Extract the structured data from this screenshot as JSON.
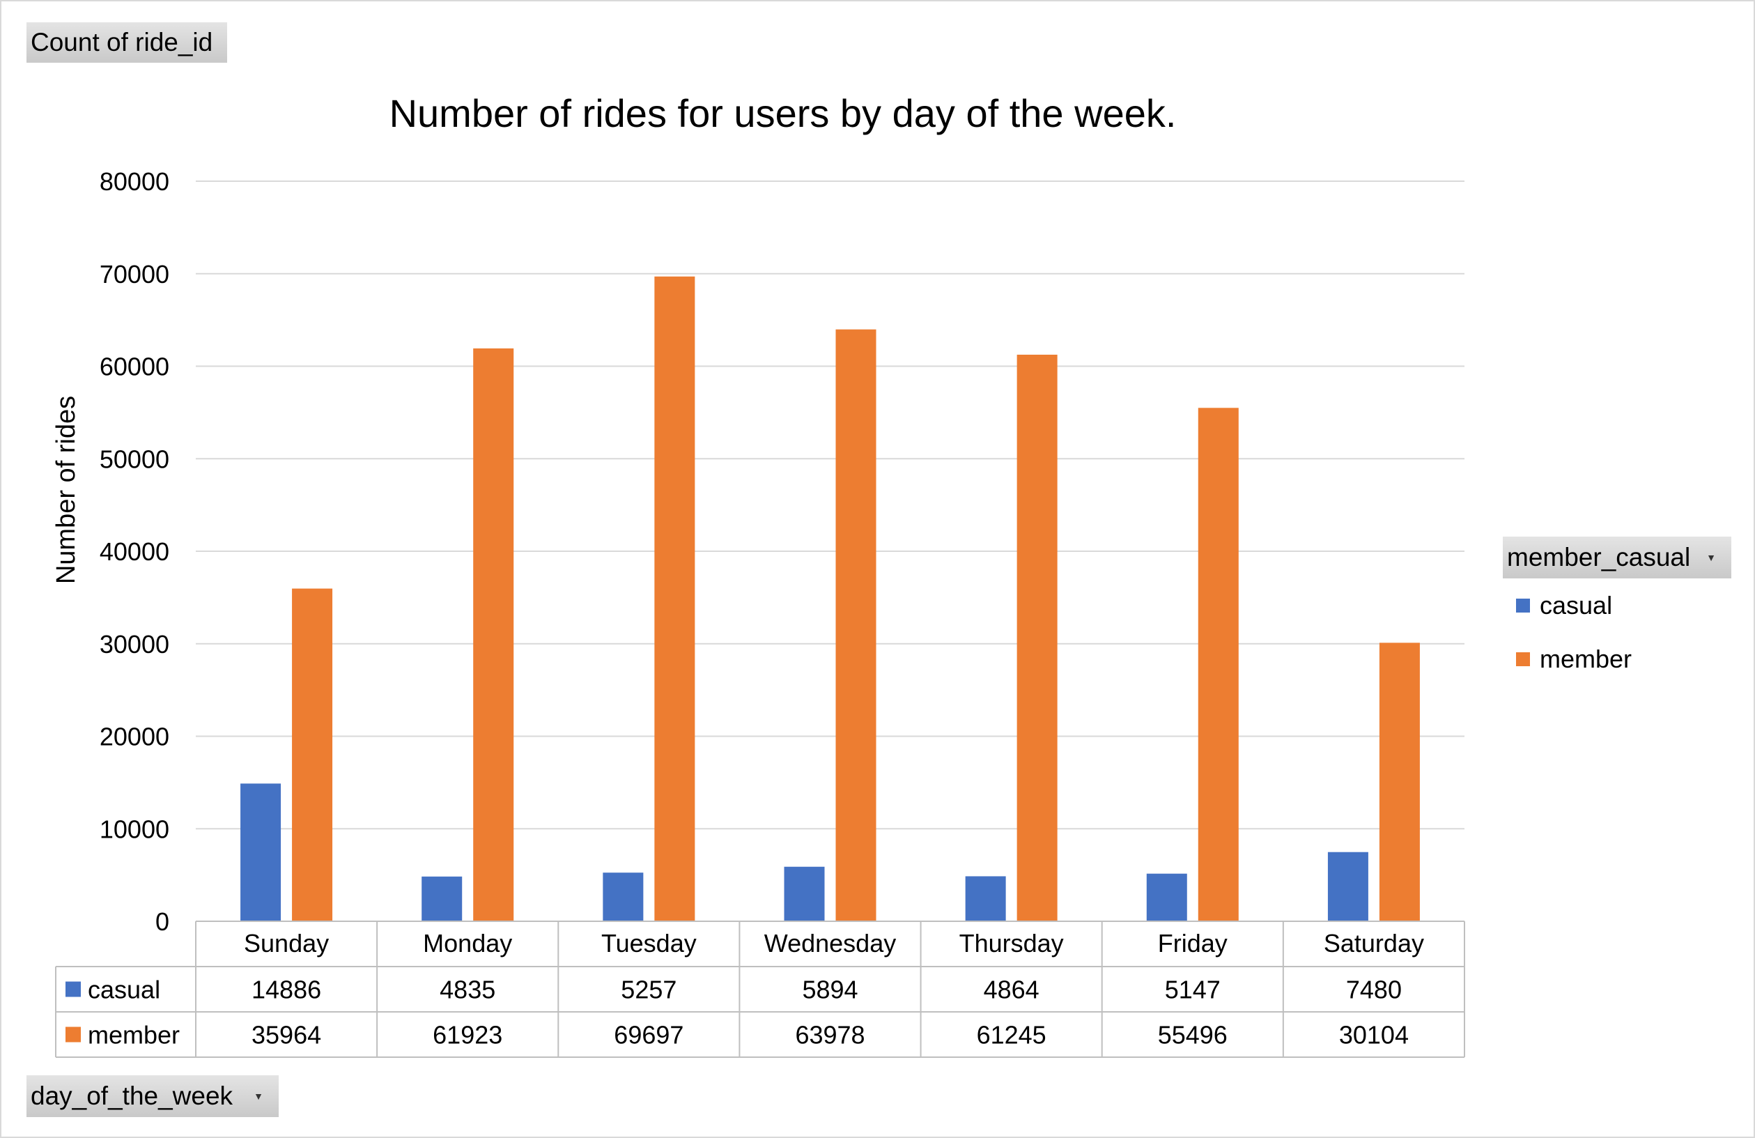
{
  "field_buttons": {
    "values_field": "Count of ride_id",
    "axis_field": "day_of_the_week",
    "legend_field": "member_casual"
  },
  "chart_data": {
    "type": "bar",
    "title": "Number of rides for users by day of the week.",
    "xlabel": "",
    "ylabel": "Number of rides",
    "ylim": [
      0,
      80000
    ],
    "yticks": [
      0,
      10000,
      20000,
      30000,
      40000,
      50000,
      60000,
      70000,
      80000
    ],
    "grid": true,
    "legend_position": "right",
    "data_table": true,
    "categories": [
      "Sunday",
      "Monday",
      "Tuesday",
      "Wednesday",
      "Thursday",
      "Friday",
      "Saturday"
    ],
    "series": [
      {
        "name": "casual",
        "color": "#4472c4",
        "values": [
          14886,
          4835,
          5257,
          5894,
          4864,
          5147,
          7480
        ]
      },
      {
        "name": "member",
        "color": "#ed7d31",
        "values": [
          35964,
          61923,
          69697,
          63978,
          61245,
          55496,
          30104
        ]
      }
    ]
  }
}
